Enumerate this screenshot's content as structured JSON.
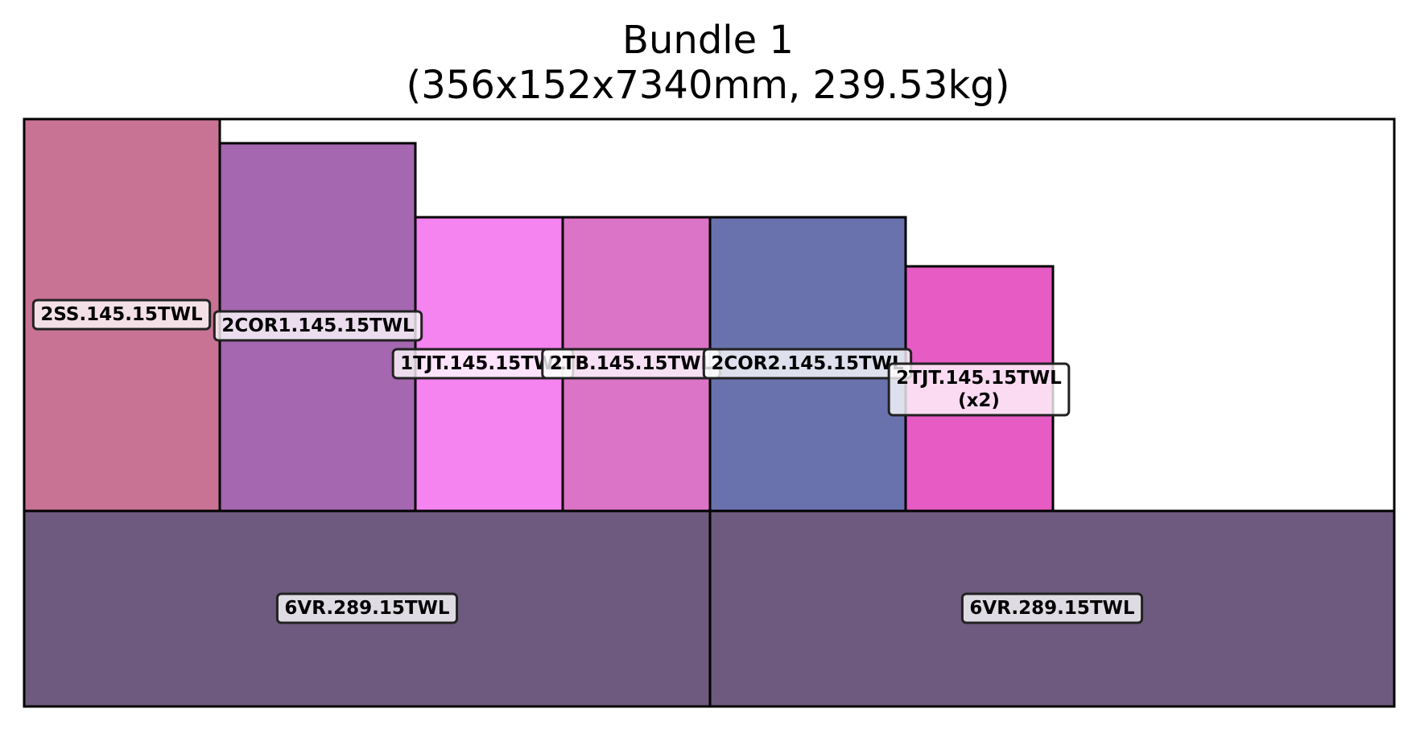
{
  "title": {
    "line1": "Bundle 1",
    "line2": "(356x152x7340mm, 239.53kg)"
  },
  "pieces": [
    {
      "label": "2SS.145.15TWL",
      "color": "#c87393"
    },
    {
      "label": "2COR1.145.15TWL",
      "color": "#a467b0"
    },
    {
      "label": "1TJT.145.15TWL",
      "color": "#f583f0"
    },
    {
      "label": "2TB.145.15TWL",
      "color": "#db73c7"
    },
    {
      "label": "2COR2.145.15TWL",
      "color": "#6a72ae"
    },
    {
      "label": "2TJT.145.15TWL\n(x2)",
      "color": "#e75bc4"
    },
    {
      "label": "6VR.289.15TWL",
      "color": "#6e5a7e"
    },
    {
      "label": "6VR.289.15TWL",
      "color": "#6e5a7e"
    }
  ]
}
